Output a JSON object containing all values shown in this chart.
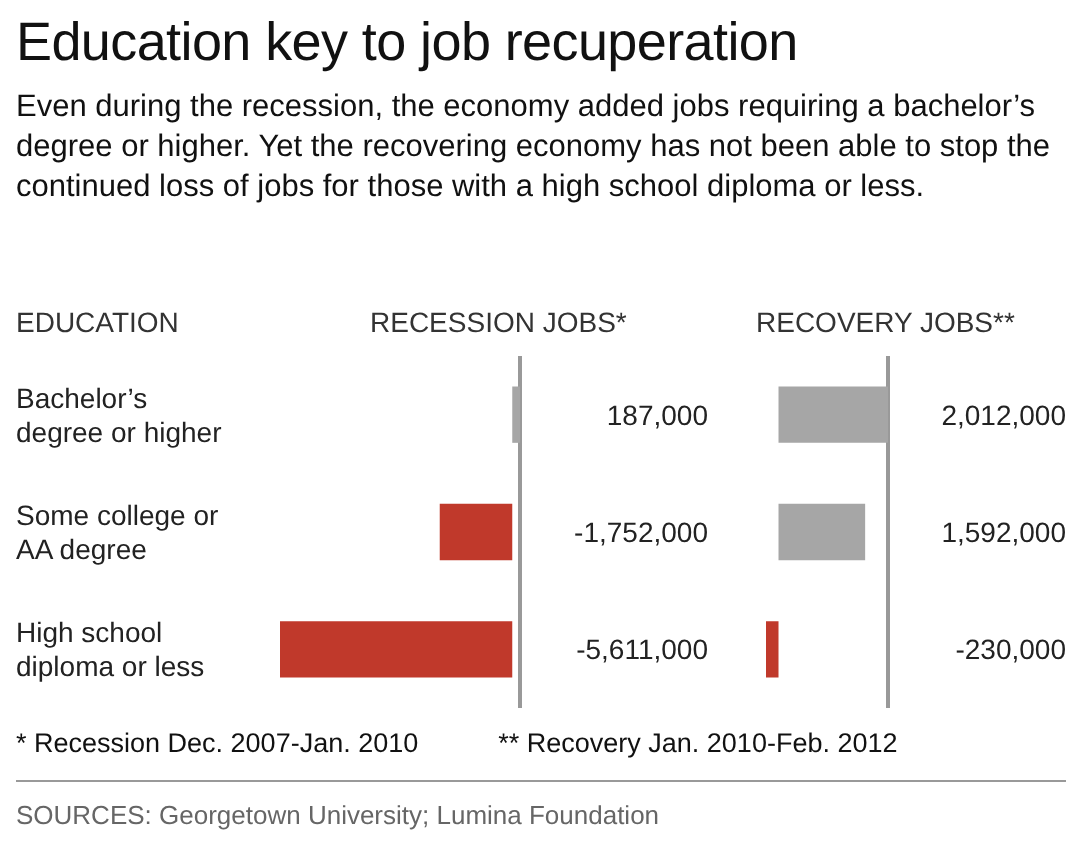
{
  "chart_data": [
    {
      "type": "bar",
      "orientation": "horizontal",
      "title": "Education key to job recuperation",
      "subtitle": "Even during the recession, the economy added jobs requiring a bachelor’s degree or higher. Yet the recovering economy has not been able to stop the continued loss of jobs for those with a high school diploma or less.",
      "ylabel": "EDUCATION",
      "xlabel": "RECESSION JOBS*",
      "tick_labels": "y",
      "categories": [
        "Bachelor’s degree or higher",
        "Some college or AA degree",
        "High school diploma or less"
      ],
      "values": [
        187000,
        -1752000,
        -5611000
      ],
      "value_labels": [
        "187,000",
        "-1,752,000",
        "-5,611,000"
      ],
      "colors": [
        "#a6a6a6",
        "#c0392b",
        "#c0392b"
      ],
      "annotations": [
        "* Recession Dec. 2007-Jan. 2010",
        "SOURCES: Georgetown University; Lumina Foundation"
      ]
    },
    {
      "type": "bar",
      "orientation": "horizontal",
      "xlabel": "RECOVERY JOBS**",
      "tick_labels": false,
      "categories": [
        "Bachelor’s degree or higher",
        "Some college or AA degree",
        "High school diploma or less"
      ],
      "values": [
        2012000,
        1592000,
        -230000
      ],
      "value_labels": [
        "2,012,000",
        "1,592,000",
        "-230,000"
      ],
      "colors": [
        "#a6a6a6",
        "#a6a6a6",
        "#c0392b"
      ],
      "annotations": [
        "** Recovery Jan. 2010-Feb. 2012"
      ]
    }
  ]
}
